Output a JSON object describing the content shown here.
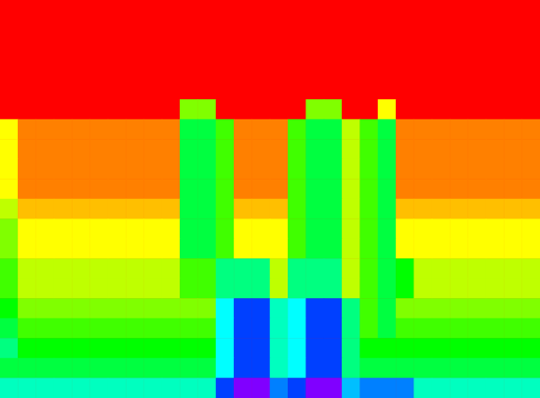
{
  "chart_data": {
    "type": "heatmap",
    "tick_labels": false,
    "zlim": [
      0,
      10
    ],
    "cells": [
      [
        0,
        0,
        0,
        0,
        0,
        0,
        0,
        0,
        0,
        0,
        0,
        0,
        0,
        0,
        0,
        0,
        0,
        0,
        0,
        0,
        0,
        0,
        0,
        0,
        0,
        0,
        0,
        0,
        0,
        0
      ],
      [
        0,
        0,
        0,
        0,
        0,
        0,
        0,
        0,
        0,
        0,
        0,
        0,
        0,
        0,
        0,
        0,
        0,
        0,
        0,
        0,
        0,
        0,
        0,
        0,
        0,
        0,
        0,
        0,
        0,
        0
      ],
      [
        0,
        0,
        0,
        0,
        0,
        0,
        0,
        0,
        0,
        0,
        0,
        0,
        0,
        0,
        0,
        0,
        0,
        0,
        0,
        0,
        0,
        0,
        0,
        0,
        0,
        0,
        0,
        0,
        0,
        0
      ],
      [
        0,
        0,
        0,
        0,
        0,
        0,
        0,
        0,
        0,
        0,
        0,
        0,
        0,
        0,
        0,
        0,
        0,
        0,
        0,
        0,
        0,
        0,
        0,
        0,
        0,
        0,
        0,
        0,
        0,
        0
      ],
      [
        0,
        0,
        0,
        0,
        0,
        0,
        0,
        0,
        0,
        0,
        0,
        0,
        0,
        0,
        0,
        0,
        0,
        0,
        0,
        0,
        0,
        0,
        0,
        0,
        0,
        0,
        0,
        0,
        0,
        0
      ],
      [
        0,
        0,
        0,
        0,
        0,
        0,
        0,
        0,
        0,
        0,
        3,
        3,
        0,
        0,
        0,
        0,
        0,
        3,
        3,
        0,
        0,
        2,
        0,
        0,
        0,
        0,
        0,
        0,
        0,
        0
      ],
      [
        2,
        1,
        1,
        1,
        1,
        1,
        1,
        1,
        1,
        1,
        4.5,
        4.5,
        3.5,
        1,
        1,
        1,
        3.5,
        4.5,
        4.5,
        2.5,
        3.5,
        4.5,
        1,
        1,
        1,
        1,
        1,
        1,
        1,
        1
      ],
      [
        2,
        1,
        1,
        1,
        1,
        1,
        1,
        1,
        1,
        1,
        4.5,
        4.5,
        3.5,
        1,
        1,
        1,
        3.5,
        4.5,
        4.5,
        2.5,
        3.5,
        4.5,
        1,
        1,
        1,
        1,
        1,
        1,
        1,
        1
      ],
      [
        2,
        1,
        1,
        1,
        1,
        1,
        1,
        1,
        1,
        1,
        4.5,
        4.5,
        3.5,
        1,
        1,
        1,
        3.5,
        4.5,
        4.5,
        2.5,
        3.5,
        4.5,
        1,
        1,
        1,
        1,
        1,
        1,
        1,
        1
      ],
      [
        2,
        1,
        1,
        1,
        1,
        1,
        1,
        1,
        1,
        1,
        4.5,
        4.5,
        3.5,
        1,
        1,
        1,
        3.5,
        4.5,
        4.5,
        2.5,
        3.5,
        4.5,
        1,
        1,
        1,
        1,
        1,
        1,
        1,
        1
      ],
      [
        2.5,
        1.5,
        1.5,
        1.5,
        1.5,
        1.5,
        1.5,
        1.5,
        1.5,
        1.5,
        4.5,
        4.5,
        3.5,
        1.5,
        1.5,
        1.5,
        3.5,
        4.5,
        4.5,
        2.5,
        3.5,
        4.5,
        1.5,
        1.5,
        1.5,
        1.5,
        1.5,
        1.5,
        1.5,
        1.5
      ],
      [
        3,
        2,
        2,
        2,
        2,
        2,
        2,
        2,
        2,
        2,
        4.5,
        4.5,
        3.5,
        2,
        2,
        2,
        3.5,
        4.5,
        4.5,
        2.5,
        3.5,
        4.5,
        2,
        2,
        2,
        2,
        2,
        2,
        2,
        2
      ],
      [
        3,
        2,
        2,
        2,
        2,
        2,
        2,
        2,
        2,
        2,
        4.5,
        4.5,
        3.5,
        2,
        2,
        2,
        3.5,
        4.5,
        4.5,
        2.5,
        3.5,
        4.5,
        2,
        2,
        2,
        2,
        2,
        2,
        2,
        2
      ],
      [
        3.5,
        2.5,
        2.5,
        2.5,
        2.5,
        2.5,
        2.5,
        2.5,
        2.5,
        2.5,
        3.5,
        3.5,
        5,
        5,
        5,
        2.5,
        5,
        5,
        5,
        2.5,
        3.5,
        4.5,
        4,
        2.5,
        2.5,
        2.5,
        2.5,
        2.5,
        2.5,
        2.5
      ],
      [
        3.5,
        2.5,
        2.5,
        2.5,
        2.5,
        2.5,
        2.5,
        2.5,
        2.5,
        2.5,
        3.5,
        3.5,
        5,
        5,
        5,
        2.5,
        5,
        5,
        5,
        2.5,
        3.5,
        4.5,
        4,
        2.5,
        2.5,
        2.5,
        2.5,
        2.5,
        2.5,
        2.5
      ],
      [
        4,
        3,
        3,
        3,
        3,
        3,
        3,
        3,
        3,
        3,
        3,
        3,
        6,
        7.5,
        7.5,
        5.5,
        6,
        7.5,
        7.5,
        5,
        3.5,
        4.5,
        3,
        3,
        3,
        3,
        3,
        3,
        3,
        3
      ],
      [
        4.5,
        3.5,
        3.5,
        3.5,
        3.5,
        3.5,
        3.5,
        3.5,
        3.5,
        3.5,
        3.5,
        3.5,
        6,
        7.5,
        7.5,
        5.5,
        6,
        7.5,
        7.5,
        5,
        3.5,
        4.5,
        3.5,
        3.5,
        3.5,
        3.5,
        3.5,
        3.5,
        3.5,
        3.5
      ],
      [
        5,
        4,
        4,
        4,
        4,
        4,
        4,
        4,
        4,
        4,
        4,
        4,
        6,
        7.5,
        7.5,
        5.5,
        6,
        7.5,
        7.5,
        5,
        4,
        4,
        4,
        4,
        4,
        4,
        4,
        4,
        4,
        4
      ],
      [
        4.5,
        4.5,
        4.5,
        4.5,
        4.5,
        4.5,
        4.5,
        4.5,
        4.5,
        4.5,
        4.5,
        4.5,
        6,
        7.5,
        7.5,
        5.5,
        6,
        7.5,
        7.5,
        5,
        4.5,
        4.5,
        4.5,
        4.5,
        4.5,
        4.5,
        4.5,
        4.5,
        4.5,
        4.5
      ],
      [
        5.5,
        5.5,
        5.5,
        5.5,
        5.5,
        5.5,
        5.5,
        5.5,
        5.5,
        5.5,
        5.5,
        5.5,
        7.5,
        9,
        9,
        7,
        7.5,
        9,
        9,
        6.5,
        7,
        7,
        7,
        5.5,
        5.5,
        5.5,
        5.5,
        5.5,
        5.5,
        5.5
      ]
    ]
  }
}
